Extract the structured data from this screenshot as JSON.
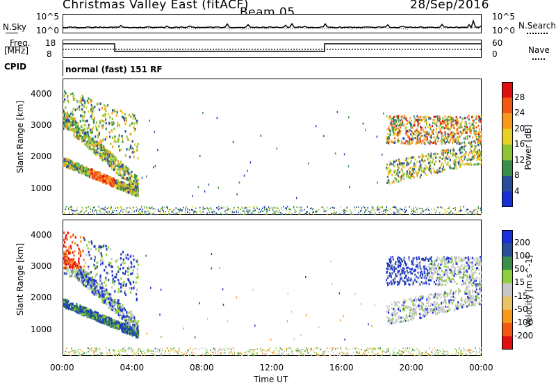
{
  "header": {
    "station": "Christmas Valley East (fitACF)",
    "beam": "Beam 05",
    "date": "28/Sep/2016"
  },
  "mini_panels": {
    "nsky_label": "N.Sky",
    "nsearch_label": "N.Search",
    "nsky_ticks": [
      "10^5",
      "10^0"
    ],
    "nsearch_ticks": [
      "10^5",
      "10^0"
    ],
    "freq_label_1": "Freq.",
    "freq_label_2": "[MHz]",
    "freq_ticks": [
      "18",
      "8"
    ],
    "nave_label": "Nave",
    "nave_ticks": [
      "60",
      "0"
    ],
    "cpid_label": "CPID",
    "cpid_text": "normal (fast) 151 RF"
  },
  "chart_data": [
    {
      "type": "heatmap",
      "name": "power",
      "ylabel": "Slant Range [km]",
      "yticks": [
        "4000",
        "3000",
        "2000",
        "1000"
      ],
      "ylim": [
        180,
        4500
      ],
      "colorbar_label": "Power [dB]",
      "colorbar_ticks": [
        "28",
        "24",
        "20",
        "16",
        "12",
        "8",
        "4"
      ],
      "colorbar_colors": [
        "#e01010",
        "#f05a14",
        "#f79a1e",
        "#e4d22a",
        "#8fc437",
        "#3a8f4a",
        "#2a4d9a",
        "#1830d0"
      ],
      "features": [
        {
          "t_start": "00:00",
          "t_end": "04:00",
          "range_start": 800,
          "range_end": 4200,
          "description_level": "strong"
        },
        {
          "t_start": "00:00",
          "t_end": "24:00",
          "range_start": 200,
          "range_end": 450,
          "description_level": "weak"
        },
        {
          "t_start": "19:00",
          "t_end": "24:00",
          "range_start": 1400,
          "range_end": 3600,
          "description_level": "moderate"
        }
      ]
    },
    {
      "type": "heatmap",
      "name": "velocity",
      "ylabel": "Slant Range [km]",
      "yticks": [
        "4000",
        "3000",
        "2000",
        "1000"
      ],
      "ylim": [
        180,
        4500
      ],
      "colorbar_label": "Velocity [m s^-1]",
      "colorbar_ticks": [
        "200",
        "100",
        "50",
        "15",
        "-15",
        "-50",
        "-100",
        "-200"
      ],
      "colorbar_colors": [
        "#1a2fd8",
        "#2a4d9a",
        "#3a8f4a",
        "#8fd040",
        "#c8c8c8",
        "#e7c46a",
        "#f79a1e",
        "#f05a14",
        "#e01010"
      ]
    }
  ],
  "x_axis": {
    "ticks": [
      "00:00",
      "04:00",
      "08:00",
      "12:00",
      "16:00",
      "20:00",
      "00:00"
    ],
    "label": "Time UT"
  }
}
